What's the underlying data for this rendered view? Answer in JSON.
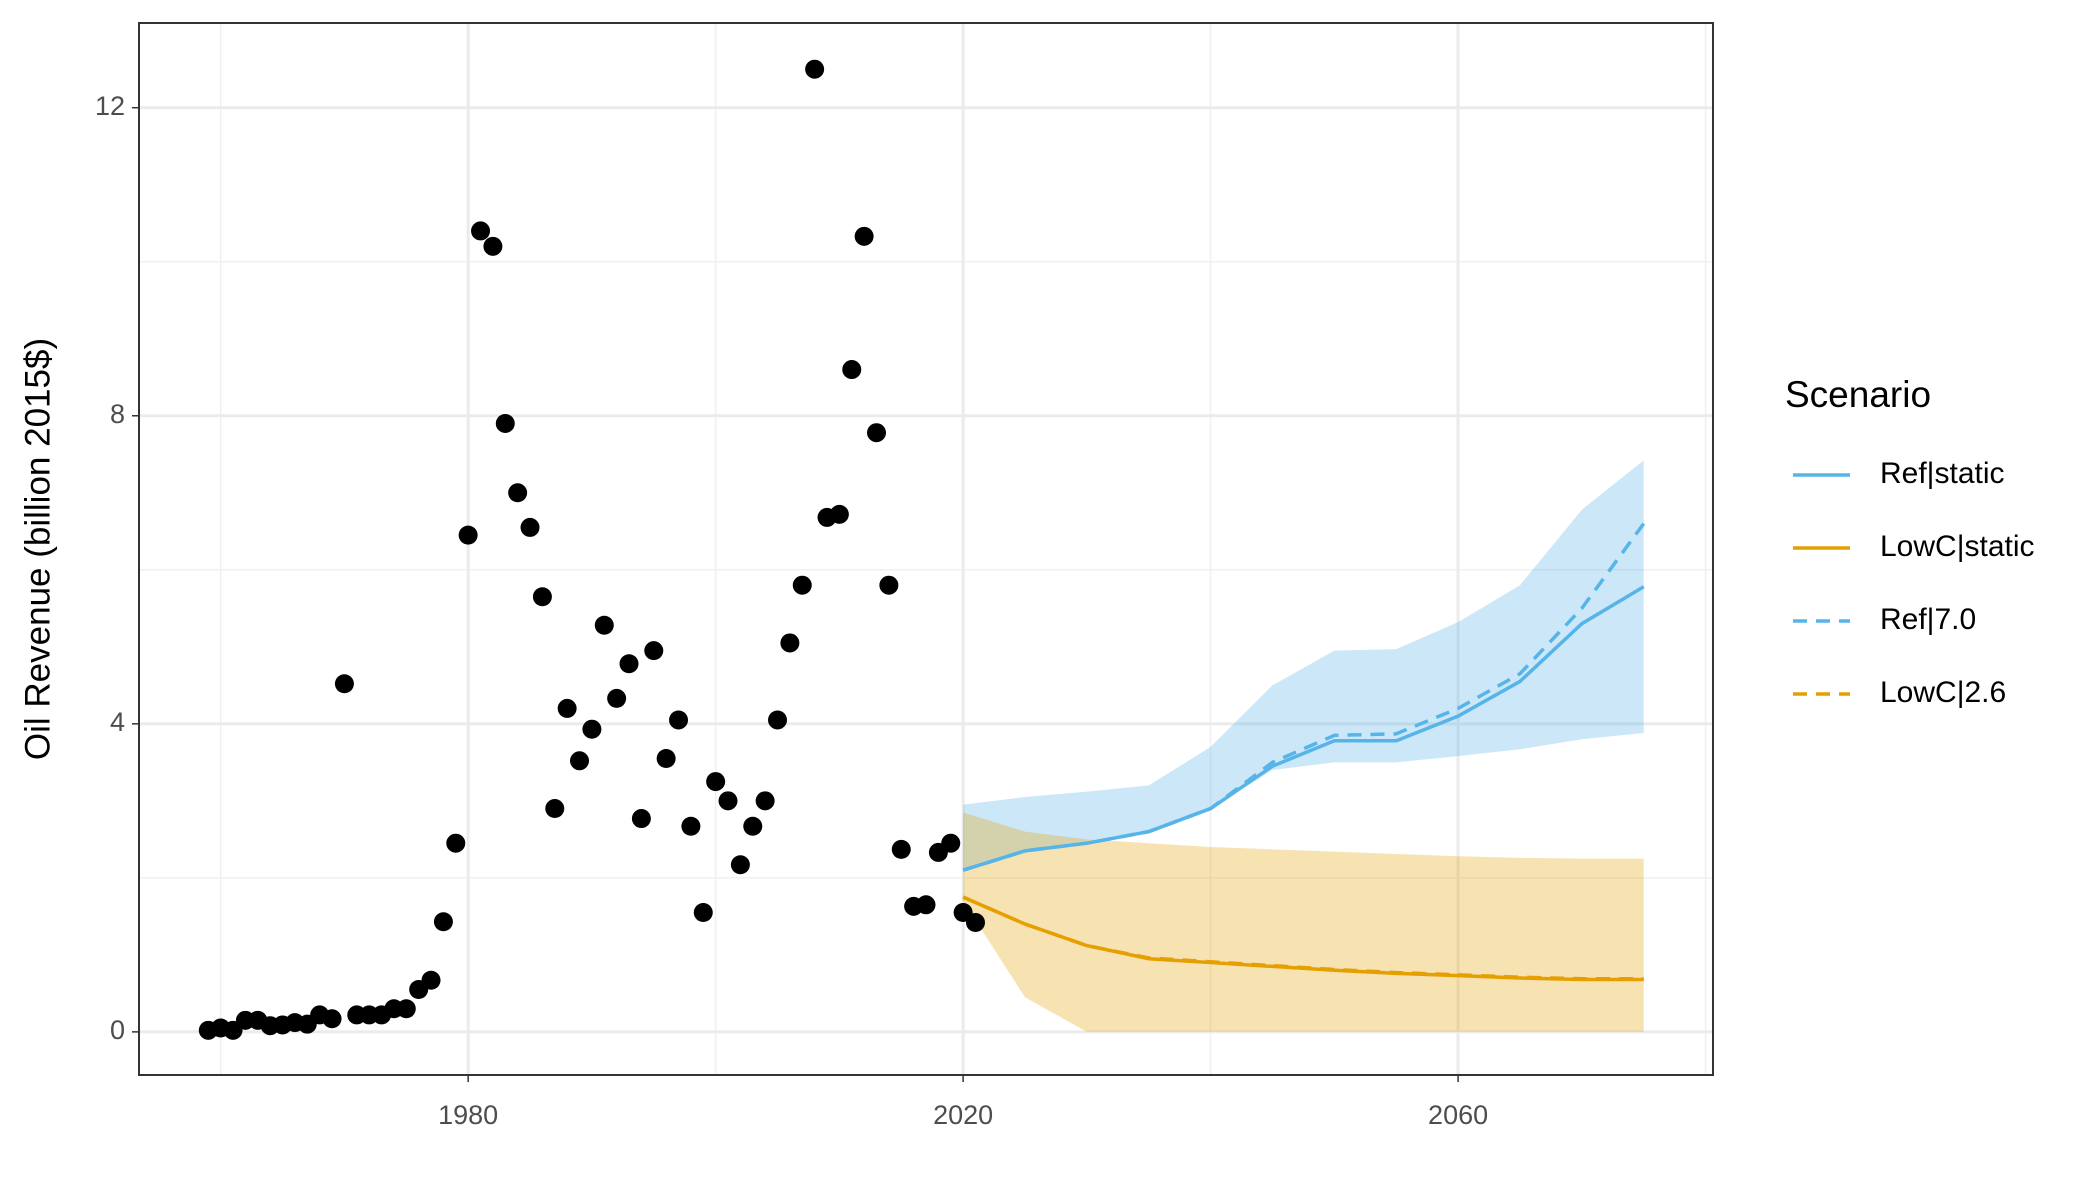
{
  "chart_data": {
    "type": "line",
    "ylabel": "Oil Revenue (billion 2015$)",
    "legend_title": "Scenario",
    "xlim": [
      1953.4,
      2080.6
    ],
    "ylim": [
      -0.56,
      13.1
    ],
    "xticks": [
      1980,
      2020,
      2060
    ],
    "yticks": [
      0,
      4,
      8,
      12
    ],
    "minor_xticks": [
      1960,
      2000,
      2040,
      2080
    ],
    "minor_yticks": [
      2,
      6,
      10
    ],
    "grid": true,
    "points": {
      "color": "#000000",
      "x": [
        1959,
        1960,
        1961,
        1962,
        1963,
        1964,
        1965,
        1966,
        1967,
        1968,
        1969,
        1970,
        1971,
        1972,
        1973,
        1974,
        1975,
        1976,
        1977,
        1978,
        1979,
        1980,
        1981,
        1982,
        1983,
        1984,
        1985,
        1986,
        1987,
        1988,
        1989,
        1990,
        1991,
        1992,
        1993,
        1994,
        1995,
        1996,
        1997,
        1998,
        1999,
        2000,
        2001,
        2002,
        2003,
        2004,
        2005,
        2006,
        2007,
        2008,
        2009,
        2010,
        2011,
        2012,
        2013,
        2014,
        2015,
        2016,
        2017,
        2018,
        2019,
        2020,
        2021
      ],
      "values": [
        0.02,
        0.05,
        0.02,
        0.15,
        0.15,
        0.08,
        0.09,
        0.12,
        0.1,
        0.22,
        0.17,
        4.52,
        0.22,
        0.22,
        0.22,
        0.3,
        0.3,
        0.55,
        0.67,
        1.43,
        2.45,
        6.45,
        10.4,
        10.2,
        7.9,
        7.0,
        6.55,
        5.65,
        2.9,
        4.2,
        3.52,
        3.93,
        5.28,
        4.33,
        4.78,
        2.77,
        4.95,
        3.55,
        4.05,
        2.67,
        1.55,
        3.25,
        3.0,
        2.17,
        2.67,
        3.0,
        4.05,
        5.05,
        5.8,
        12.5,
        6.68,
        6.72,
        8.6,
        10.33,
        7.78,
        5.8,
        2.37,
        1.63,
        1.65,
        2.33,
        2.45,
        1.55,
        1.42
      ]
    },
    "x": [
      2020,
      2025,
      2030,
      2035,
      2040,
      2045,
      2050,
      2055,
      2060,
      2065,
      2070,
      2075
    ],
    "series": [
      {
        "name": "Ref|static",
        "color": "#56B4E9",
        "dash": false,
        "values": [
          2.1,
          2.35,
          2.45,
          2.6,
          2.9,
          3.45,
          3.78,
          3.78,
          4.1,
          4.55,
          5.3,
          5.78
        ],
        "band_lower": [
          2.1,
          2.35,
          2.45,
          2.6,
          2.9,
          3.4,
          3.5,
          3.5,
          3.58,
          3.67,
          3.8,
          3.88
        ],
        "band_upper": [
          2.95,
          3.05,
          3.12,
          3.2,
          3.7,
          4.5,
          4.95,
          4.97,
          5.32,
          5.8,
          6.78,
          7.42
        ]
      },
      {
        "name": "LowC|static",
        "color": "#E69F00",
        "dash": false,
        "values": [
          1.75,
          1.4,
          1.12,
          0.95,
          0.9,
          0.85,
          0.8,
          0.76,
          0.73,
          0.7,
          0.68,
          0.68
        ],
        "band_lower": [
          1.7,
          0.45,
          0,
          0,
          0,
          0,
          0,
          0,
          0,
          0,
          0,
          0
        ],
        "band_upper": [
          2.85,
          2.6,
          2.5,
          2.45,
          2.4,
          2.37,
          2.34,
          2.31,
          2.28,
          2.26,
          2.25,
          2.25
        ]
      },
      {
        "name": "Ref|7.0",
        "color": "#56B4E9",
        "dash": true,
        "values": [
          2.1,
          2.35,
          2.45,
          2.6,
          2.9,
          3.5,
          3.85,
          3.87,
          4.2,
          4.65,
          5.5,
          6.6
        ]
      },
      {
        "name": "LowC|2.6",
        "color": "#E69F00",
        "dash": true,
        "values": [
          1.75,
          1.4,
          1.12,
          0.96,
          0.91,
          0.86,
          0.81,
          0.77,
          0.74,
          0.71,
          0.69,
          0.69
        ]
      }
    ]
  }
}
